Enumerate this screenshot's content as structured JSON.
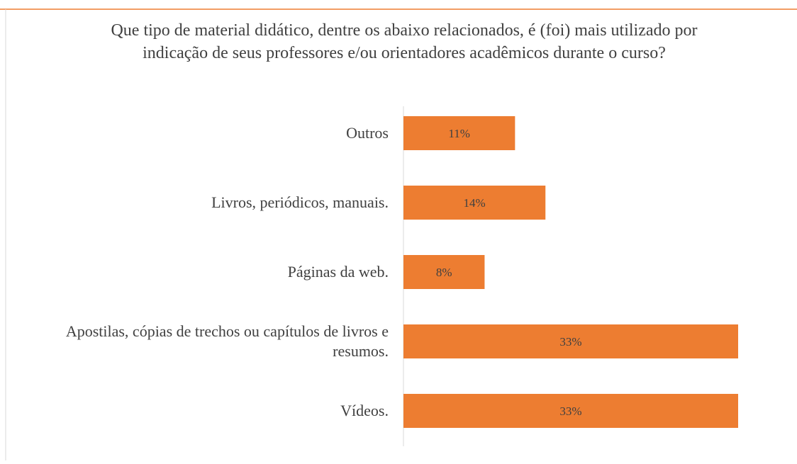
{
  "chart_data": {
    "type": "bar",
    "orientation": "horizontal",
    "title": "Que tipo de material didático, dentre os abaixo relacionados, é (foi) mais utilizado por indicação de seus professores e/ou orientadores acadêmicos durante o curso?",
    "categories": [
      "Outros",
      "Livros, periódicos, manuais.",
      "Páginas da web.",
      "Apostilas, cópias de trechos ou capítulos de livros e resumos.",
      "Vídeos."
    ],
    "values": [
      11,
      14,
      8,
      33,
      33
    ],
    "value_labels": [
      "11%",
      "14%",
      "8%",
      "33%",
      "33%"
    ],
    "color": "#ed7d31"
  }
}
